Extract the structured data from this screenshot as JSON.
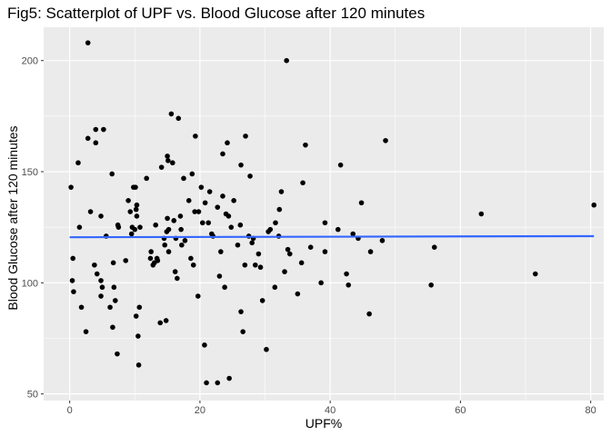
{
  "chart_data": {
    "type": "scatter",
    "title": "Fig5: Scatterplot of UPF vs. Blood Glucose after 120 minutes",
    "xlabel": "UPF%",
    "ylabel": "Blood Glucose after 120 minutes",
    "xlim": [
      -4,
      82
    ],
    "ylim": [
      47,
      215
    ],
    "x_ticks": [
      0,
      20,
      40,
      60,
      80
    ],
    "y_ticks": [
      50,
      100,
      150,
      200
    ],
    "grid": true,
    "colors": {
      "panel_background": "#ebebeb",
      "grid_major": "#ffffff",
      "points": "#000000",
      "trend_line": "#3366ff"
    },
    "trend_line": {
      "x": [
        0,
        80.5
      ],
      "y": [
        120.5,
        121
      ]
    },
    "points": [
      [
        0.2,
        143
      ],
      [
        0.4,
        101
      ],
      [
        0.5,
        111
      ],
      [
        0.6,
        96
      ],
      [
        1.3,
        154
      ],
      [
        1.5,
        125
      ],
      [
        1.8,
        89
      ],
      [
        2.5,
        78
      ],
      [
        2.8,
        208
      ],
      [
        2.8,
        165
      ],
      [
        3.2,
        132
      ],
      [
        3.8,
        108
      ],
      [
        4.0,
        163
      ],
      [
        4.0,
        169
      ],
      [
        4.2,
        104
      ],
      [
        4.8,
        130
      ],
      [
        4.8,
        101
      ],
      [
        4.8,
        94
      ],
      [
        5.0,
        98
      ],
      [
        5.2,
        169
      ],
      [
        5.6,
        121
      ],
      [
        6.2,
        89
      ],
      [
        6.5,
        149
      ],
      [
        6.6,
        80
      ],
      [
        6.7,
        109
      ],
      [
        6.8,
        98
      ],
      [
        7.0,
        92
      ],
      [
        7.3,
        68
      ],
      [
        7.4,
        126
      ],
      [
        7.5,
        125
      ],
      [
        8.6,
        110
      ],
      [
        9.0,
        137
      ],
      [
        9.3,
        132
      ],
      [
        9.5,
        122
      ],
      [
        9.6,
        125
      ],
      [
        9.8,
        143
      ],
      [
        10.0,
        124
      ],
      [
        10.1,
        143
      ],
      [
        10.2,
        85
      ],
      [
        10.2,
        133
      ],
      [
        10.3,
        135
      ],
      [
        10.3,
        130
      ],
      [
        10.5,
        76
      ],
      [
        10.6,
        63
      ],
      [
        10.7,
        89
      ],
      [
        10.8,
        125
      ],
      [
        11.8,
        147
      ],
      [
        12.4,
        111
      ],
      [
        12.5,
        114
      ],
      [
        12.8,
        108
      ],
      [
        13.0,
        109
      ],
      [
        13.2,
        126
      ],
      [
        13.4,
        111
      ],
      [
        13.5,
        110
      ],
      [
        13.9,
        82
      ],
      [
        14.1,
        152
      ],
      [
        14.5,
        120
      ],
      [
        14.6,
        117
      ],
      [
        14.8,
        83
      ],
      [
        14.9,
        123
      ],
      [
        15.0,
        157
      ],
      [
        15.0,
        129
      ],
      [
        15.1,
        155
      ],
      [
        15.2,
        114
      ],
      [
        15.2,
        124
      ],
      [
        15.6,
        176
      ],
      [
        15.8,
        154
      ],
      [
        16.0,
        128
      ],
      [
        16.2,
        105
      ],
      [
        16.3,
        120
      ],
      [
        16.5,
        102
      ],
      [
        16.7,
        174
      ],
      [
        17.0,
        130
      ],
      [
        17.1,
        124
      ],
      [
        17.2,
        117
      ],
      [
        17.5,
        147
      ],
      [
        17.7,
        119
      ],
      [
        18.3,
        137
      ],
      [
        18.6,
        111
      ],
      [
        18.8,
        149
      ],
      [
        19.0,
        108
      ],
      [
        19.2,
        132
      ],
      [
        19.3,
        166
      ],
      [
        19.7,
        94
      ],
      [
        19.8,
        132
      ],
      [
        20.2,
        143
      ],
      [
        20.4,
        127
      ],
      [
        20.7,
        72
      ],
      [
        20.8,
        136
      ],
      [
        21.0,
        55
      ],
      [
        21.3,
        127
      ],
      [
        21.5,
        141
      ],
      [
        21.8,
        122
      ],
      [
        22.0,
        121
      ],
      [
        22.7,
        55
      ],
      [
        22.7,
        134
      ],
      [
        23.0,
        103
      ],
      [
        23.2,
        114
      ],
      [
        23.5,
        139
      ],
      [
        23.5,
        158
      ],
      [
        23.8,
        98
      ],
      [
        24.0,
        131
      ],
      [
        24.2,
        163
      ],
      [
        24.4,
        130
      ],
      [
        24.5,
        57
      ],
      [
        24.8,
        125
      ],
      [
        25.2,
        137
      ],
      [
        25.8,
        117
      ],
      [
        26.2,
        126
      ],
      [
        26.3,
        153
      ],
      [
        26.3,
        87
      ],
      [
        26.6,
        78
      ],
      [
        26.9,
        108
      ],
      [
        27.0,
        166
      ],
      [
        27.5,
        121
      ],
      [
        27.7,
        148
      ],
      [
        28.0,
        118
      ],
      [
        28.2,
        120
      ],
      [
        28.5,
        108
      ],
      [
        29.0,
        113
      ],
      [
        29.3,
        107
      ],
      [
        29.6,
        92
      ],
      [
        30.2,
        70
      ],
      [
        30.5,
        123
      ],
      [
        30.8,
        124
      ],
      [
        31.5,
        98
      ],
      [
        31.6,
        127
      ],
      [
        32.1,
        121
      ],
      [
        32.2,
        133
      ],
      [
        32.5,
        141
      ],
      [
        33.0,
        105
      ],
      [
        33.3,
        200
      ],
      [
        33.5,
        115
      ],
      [
        33.8,
        113
      ],
      [
        35.0,
        95
      ],
      [
        35.6,
        109
      ],
      [
        35.8,
        145
      ],
      [
        36.2,
        162
      ],
      [
        37.0,
        116
      ],
      [
        38.6,
        100
      ],
      [
        39.2,
        127
      ],
      [
        39.2,
        114
      ],
      [
        41.2,
        124
      ],
      [
        41.6,
        153
      ],
      [
        42.5,
        104
      ],
      [
        42.8,
        99
      ],
      [
        43.5,
        122
      ],
      [
        44.3,
        120
      ],
      [
        44.8,
        136
      ],
      [
        46.0,
        86
      ],
      [
        46.2,
        114
      ],
      [
        48.0,
        119
      ],
      [
        48.5,
        164
      ],
      [
        55.5,
        99
      ],
      [
        56.0,
        116
      ],
      [
        63.2,
        131
      ],
      [
        71.5,
        104
      ],
      [
        80.5,
        135
      ]
    ]
  }
}
